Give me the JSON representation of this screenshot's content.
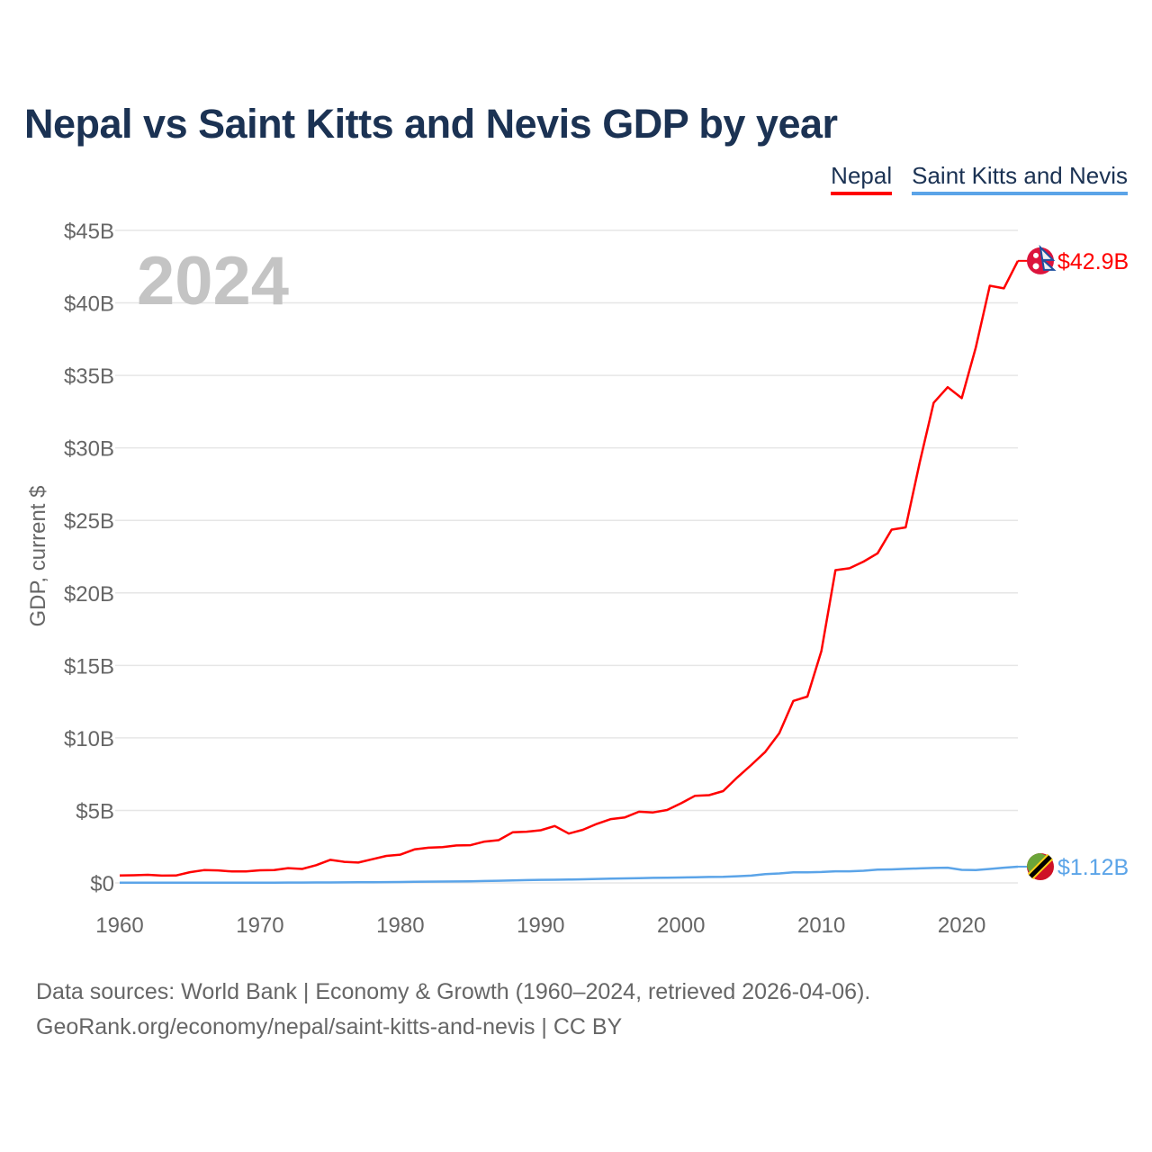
{
  "chart_data": {
    "type": "line",
    "title": "Nepal vs Saint Kitts and Nevis GDP by year",
    "ylabel": "GDP, current $",
    "xlabel": "",
    "year_label": "2024",
    "xlim": [
      1960,
      2024
    ],
    "ylim": [
      0,
      45
    ],
    "x_ticks": [
      1960,
      1970,
      1980,
      1990,
      2000,
      2010,
      2020
    ],
    "y_ticks": [
      0,
      5,
      10,
      15,
      20,
      25,
      30,
      35,
      40,
      45
    ],
    "y_tick_labels": [
      "$0",
      "$5B",
      "$10B",
      "$15B",
      "$20B",
      "$25B",
      "$30B",
      "$35B",
      "$40B",
      "$45B"
    ],
    "grid": true,
    "legend_position": "top-right",
    "series": [
      {
        "name": "Nepal",
        "color": "#ff0000",
        "end_label": "$42.9B",
        "flag": "nepal-flag",
        "values": [
          0.51,
          0.53,
          0.56,
          0.5,
          0.51,
          0.74,
          0.88,
          0.86,
          0.79,
          0.79,
          0.87,
          0.88,
          1.02,
          0.96,
          1.22,
          1.59,
          1.45,
          1.4,
          1.63,
          1.86,
          1.95,
          2.31,
          2.43,
          2.47,
          2.58,
          2.6,
          2.85,
          2.95,
          3.49,
          3.53,
          3.63,
          3.92,
          3.4,
          3.66,
          4.07,
          4.4,
          4.52,
          4.91,
          4.86,
          5.03,
          5.49,
          6.01,
          6.05,
          6.33,
          7.27,
          8.13,
          9.04,
          10.33,
          12.55,
          12.85,
          16.0,
          21.57,
          21.7,
          22.16,
          22.73,
          24.36,
          24.52,
          28.97,
          33.11,
          34.19,
          33.43,
          36.92,
          41.18,
          41.0,
          42.9
        ]
      },
      {
        "name": "Saint Kitts and Nevis",
        "color": "#5ba4e8",
        "end_label": "$1.12B",
        "flag": "saint-kitts-and-nevis-flag",
        "values": [
          0.012,
          0.012,
          0.013,
          0.013,
          0.014,
          0.014,
          0.015,
          0.015,
          0.016,
          0.017,
          0.018,
          0.02,
          0.023,
          0.026,
          0.03,
          0.034,
          0.04,
          0.045,
          0.05,
          0.058,
          0.065,
          0.075,
          0.085,
          0.09,
          0.1,
          0.11,
          0.13,
          0.15,
          0.17,
          0.19,
          0.21,
          0.22,
          0.23,
          0.25,
          0.27,
          0.29,
          0.31,
          0.33,
          0.35,
          0.36,
          0.37,
          0.39,
          0.41,
          0.42,
          0.46,
          0.5,
          0.6,
          0.65,
          0.73,
          0.73,
          0.75,
          0.8,
          0.8,
          0.84,
          0.91,
          0.93,
          0.97,
          1.0,
          1.03,
          1.05,
          0.9,
          0.88,
          0.96,
          1.05,
          1.12
        ]
      }
    ]
  },
  "footer": {
    "line1": "Data sources: World Bank | Economy & Growth (1960–2024, retrieved 2026-04-06).",
    "line2": "GeoRank.org/economy/nepal/saint-kitts-and-nevis | CC BY"
  }
}
